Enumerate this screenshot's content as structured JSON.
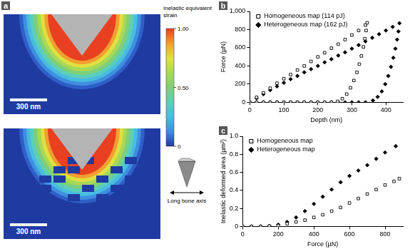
{
  "panel_a": {
    "panel": "a",
    "colorbar": {
      "title": "Inelastic equivalent strain",
      "range": [
        0,
        1
      ],
      "ticks": [
        0,
        {
          "value": 0.5,
          "label": "0.50"
        },
        {
          "value": 1,
          "label": "1.00"
        }
      ]
    },
    "scale_bars": [
      "300 nm",
      "300 nm"
    ],
    "indenter_label": "Long bone axis"
  },
  "chart_data": [
    {
      "panel": "b",
      "type": "scatter",
      "x_label": "Depth (nm)",
      "y_label": "Force (µN)",
      "xlim": [
        0,
        450
      ],
      "xticks": [
        0,
        100,
        200,
        300,
        400
      ],
      "ylim": [
        0,
        1000
      ],
      "yticks": [
        0,
        200,
        400,
        600,
        800,
        {
          "value": 1000,
          "label": "1,000"
        }
      ],
      "grid": false,
      "legend": "upper left",
      "series": [
        {
          "name": "Homogeneous map (114 pJ)",
          "color": "#000000",
          "marker": "square_open",
          "x": [
            0,
            20,
            40,
            60,
            80,
            100,
            120,
            140,
            160,
            180,
            200,
            220,
            240,
            260,
            280,
            300,
            320,
            340,
            345,
            342,
            338,
            334,
            328,
            322,
            315,
            306,
            296,
            285,
            272,
            258,
            20,
            40,
            60,
            80,
            100,
            120,
            140,
            160,
            180,
            200,
            220,
            240
          ],
          "values": [
            0,
            55,
            105,
            155,
            210,
            260,
            305,
            355,
            400,
            450,
            500,
            545,
            595,
            640,
            690,
            740,
            790,
            850,
            875,
            790,
            700,
            610,
            510,
            420,
            330,
            240,
            160,
            90,
            40,
            10,
            0,
            0,
            0,
            0,
            0,
            0,
            0,
            0,
            0,
            0,
            0,
            0
          ]
        },
        {
          "name": "Heterogeneous map (162 pJ)",
          "color": "#000000",
          "marker": "diamond",
          "x": [
            0,
            20,
            40,
            60,
            80,
            100,
            120,
            140,
            160,
            180,
            200,
            220,
            240,
            260,
            280,
            300,
            320,
            340,
            360,
            380,
            400,
            420,
            440,
            437,
            433,
            428,
            422,
            415,
            407,
            398,
            388,
            376,
            362,
            20,
            40,
            60,
            80,
            100,
            120,
            140,
            160,
            180,
            200,
            220,
            240,
            260,
            280,
            300,
            320,
            340
          ],
          "values": [
            0,
            45,
            90,
            135,
            175,
            215,
            255,
            290,
            330,
            365,
            400,
            440,
            475,
            515,
            550,
            590,
            630,
            670,
            710,
            750,
            790,
            830,
            870,
            780,
            690,
            590,
            490,
            390,
            290,
            200,
            120,
            60,
            20,
            0,
            0,
            0,
            0,
            0,
            0,
            0,
            0,
            0,
            0,
            0,
            0,
            0,
            0,
            0,
            0,
            0
          ]
        }
      ]
    },
    {
      "panel": "c",
      "type": "scatter",
      "x_label": "Force (µN)",
      "y_label": "Inelastic deformed area (µm²)",
      "xlim": [
        0,
        900
      ],
      "xticks": [
        0,
        200,
        400,
        600,
        800
      ],
      "ylim": [
        0,
        1
      ],
      "yticks": [
        0,
        0.2,
        0.4,
        0.6,
        0.8,
        {
          "value": 1,
          "label": "1.0"
        }
      ],
      "grid": false,
      "legend": "upper left",
      "series": [
        {
          "name": "Homogeneous map",
          "color": "#000000",
          "marker": "square_open",
          "x": [
            0,
            50,
            100,
            150,
            200,
            250,
            300,
            350,
            400,
            450,
            500,
            550,
            600,
            650,
            700,
            750,
            800,
            850,
            880
          ],
          "values": [
            0,
            0,
            0,
            0.005,
            0.01,
            0.03,
            0.05,
            0.07,
            0.1,
            0.13,
            0.17,
            0.21,
            0.26,
            0.31,
            0.36,
            0.41,
            0.46,
            0.5,
            0.53
          ]
        },
        {
          "name": "Heterogeneous map",
          "color": "#000000",
          "marker": "diamond",
          "x": [
            0,
            50,
            100,
            150,
            200,
            250,
            300,
            350,
            400,
            450,
            500,
            550,
            600,
            650,
            700,
            750,
            800,
            860
          ],
          "values": [
            0,
            0,
            0,
            0.005,
            0.02,
            0.05,
            0.1,
            0.17,
            0.25,
            0.33,
            0.41,
            0.49,
            0.56,
            0.62,
            0.68,
            0.75,
            0.82,
            0.89
          ]
        }
      ]
    }
  ]
}
